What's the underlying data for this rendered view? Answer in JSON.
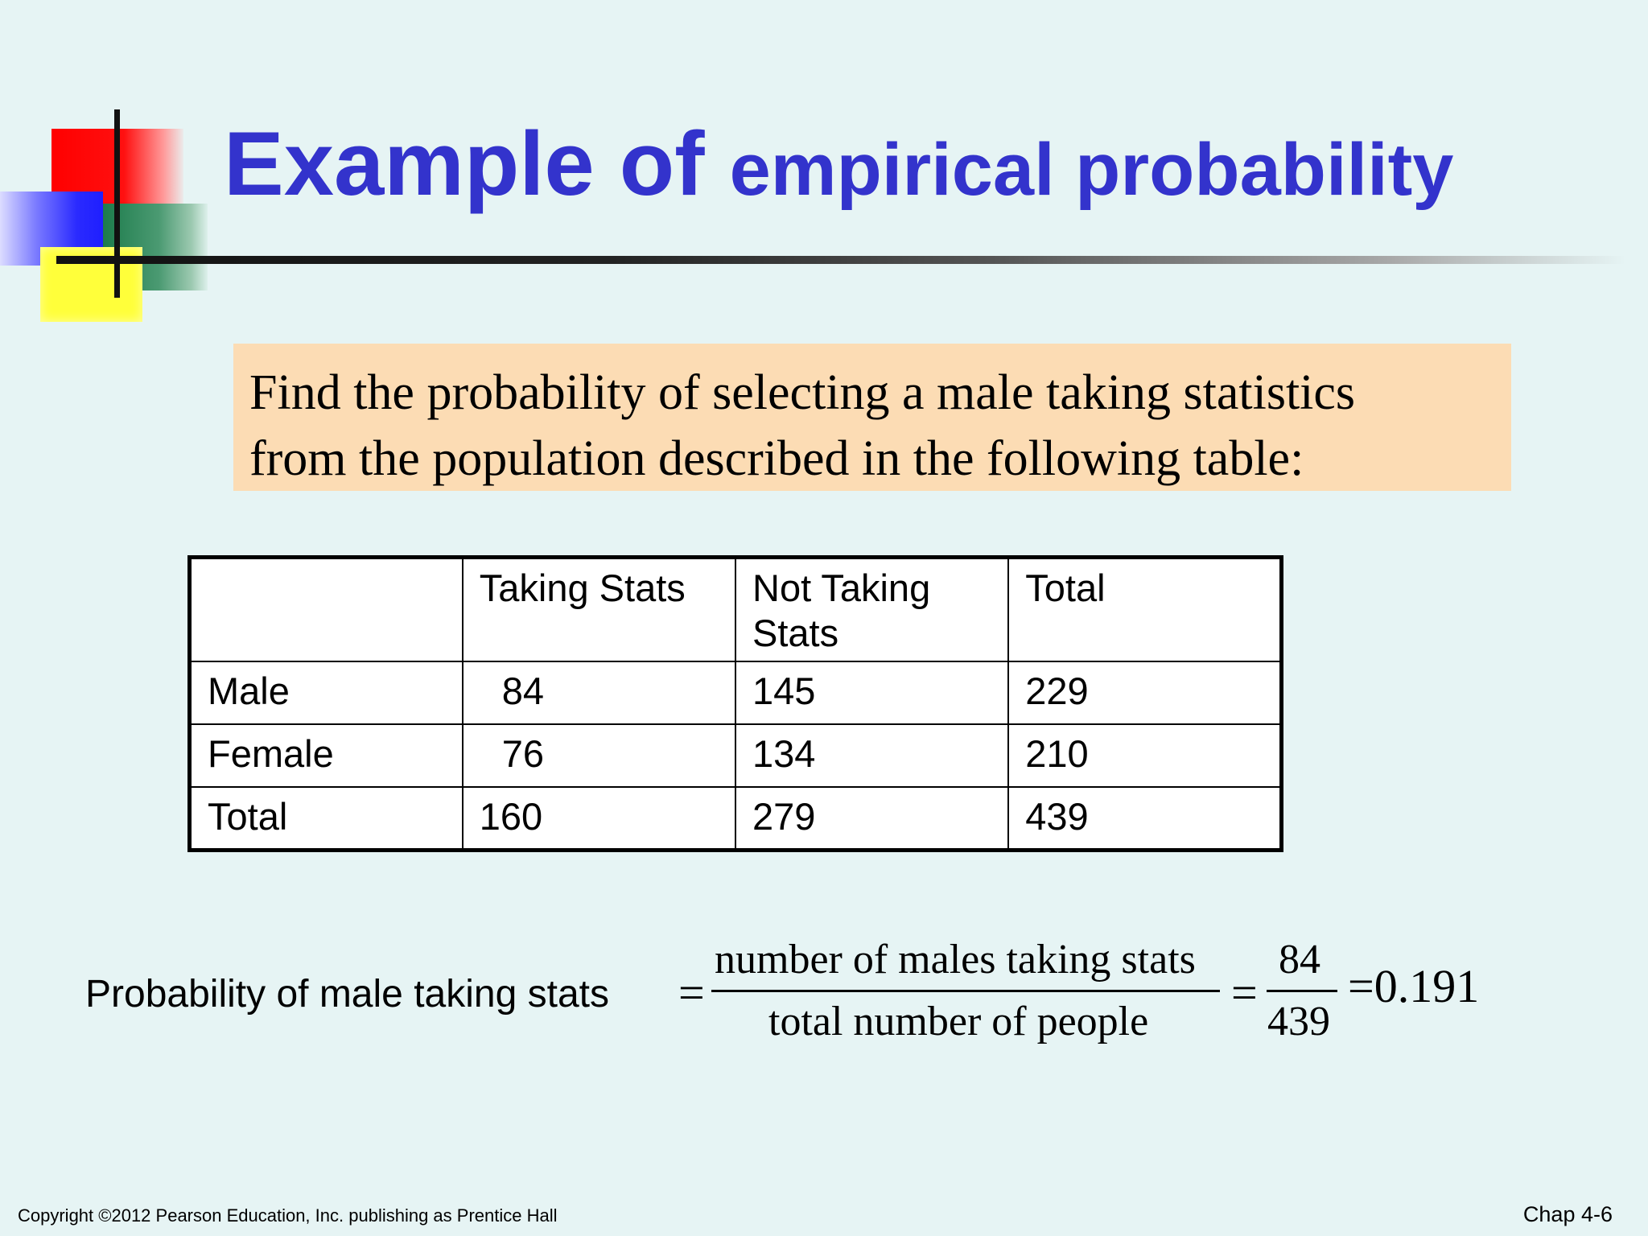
{
  "slide": {
    "title_large": "Example of",
    "title_small": "empirical probability",
    "prompt_line1": "Find the probability of selecting a male taking statistics",
    "prompt_line2": "from the population described in the following table:"
  },
  "table": {
    "headers": [
      "",
      "Taking Stats",
      "Not Taking Stats",
      "Total"
    ],
    "rows": [
      {
        "label": "Male",
        "values": [
          "84",
          "145",
          "229"
        ]
      },
      {
        "label": "Female",
        "values": [
          "76",
          "134",
          "210"
        ]
      },
      {
        "label": "Total",
        "values": [
          "160",
          "279",
          "439"
        ]
      }
    ]
  },
  "formula": {
    "label": "Probability of male taking stats",
    "equals": "=",
    "numerator_text": "number of males taking stats",
    "denominator_text": "total number of people",
    "numerator_value": "84",
    "denominator_value": "439",
    "result": "=0.191"
  },
  "footer": {
    "copyright": "Copyright ©2012 Pearson Education, Inc. publishing as Prentice Hall",
    "chapter": "Chap 4-6"
  },
  "colors": {
    "background": "#e6f4f4",
    "title": "#3333cc",
    "prompt_box": "#fcdcb4"
  }
}
